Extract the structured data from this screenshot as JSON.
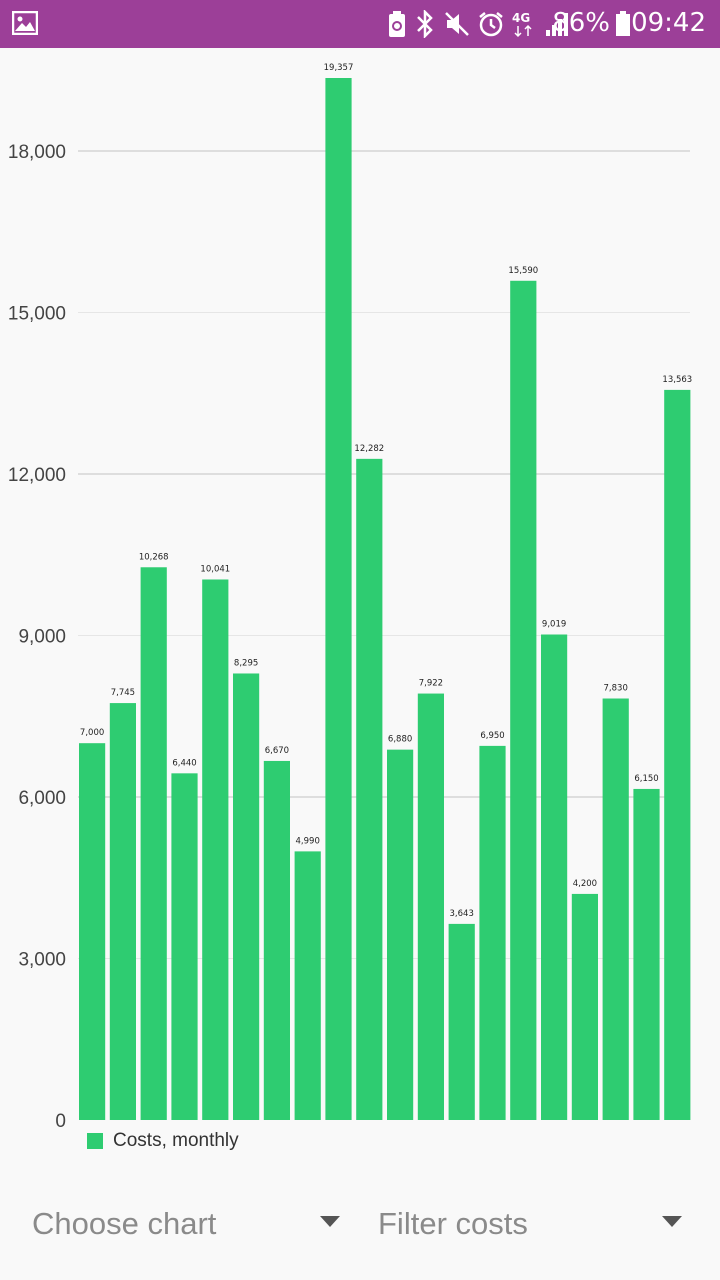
{
  "status_bar": {
    "battery_percent": "86%",
    "time": "09:42",
    "network": "4G",
    "icons": [
      "image-icon",
      "battery-saver-icon",
      "bluetooth-icon",
      "mute-icon",
      "alarm-icon",
      "network-4g-icon",
      "signal-icon",
      "battery-icon"
    ]
  },
  "chart_data": {
    "type": "bar",
    "categories": [
      "",
      "",
      "",
      "",
      "",
      "",
      "",
      "",
      "",
      "",
      "",
      "",
      "",
      "",
      "",
      "",
      "",
      "",
      "",
      ""
    ],
    "series": [
      {
        "name": "Costs, monthly",
        "values": [
          7000,
          7745,
          10268,
          6440,
          10041,
          8295,
          6670,
          4990,
          19357,
          12282,
          6880,
          7922,
          3643,
          6950,
          15590,
          9019,
          4200,
          7830,
          6150,
          13563
        ],
        "labels": [
          "7,000",
          "7,745",
          "10,268",
          "6,440",
          "10,041",
          "8,295",
          "6,670",
          "4,990",
          "19,357",
          "12,282",
          "6,880",
          "7,922",
          "3,643",
          "6,950",
          "15,590",
          "9,019",
          "4,200",
          "7,830",
          "6,150",
          "13,563"
        ]
      }
    ],
    "yticks": [
      0,
      3000,
      6000,
      9000,
      12000,
      15000,
      18000
    ],
    "ytick_labels": [
      "0",
      "3,000",
      "6,000",
      "9,000",
      "12,000",
      "15,000",
      "18,000"
    ],
    "ylim": [
      0,
      19357
    ],
    "grid": true,
    "legend": "bottom-left",
    "bar_color": "#2ecc71"
  },
  "controls": {
    "choose_chart": "Choose chart",
    "filter_costs": "Filter costs"
  }
}
